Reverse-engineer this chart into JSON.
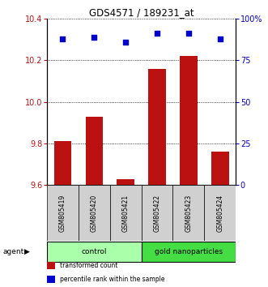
{
  "title": "GDS4571 / 189231_at",
  "samples": [
    "GSM805419",
    "GSM805420",
    "GSM805421",
    "GSM805422",
    "GSM805423",
    "GSM805424"
  ],
  "bar_values": [
    9.81,
    9.93,
    9.63,
    10.16,
    10.22,
    9.76
  ],
  "dot_values": [
    88,
    89,
    86,
    91,
    91,
    88
  ],
  "ylim_left": [
    9.6,
    10.4
  ],
  "ylim_right": [
    0,
    100
  ],
  "yticks_left": [
    9.6,
    9.8,
    10.0,
    10.2,
    10.4
  ],
  "yticks_right": [
    0,
    25,
    50,
    75,
    100
  ],
  "ytick_labels_right": [
    "0",
    "25",
    "50",
    "75",
    "100%"
  ],
  "bar_color": "#bb1111",
  "dot_color": "#0000cc",
  "bar_bottom": 9.6,
  "groups": [
    {
      "label": "control",
      "indices": [
        0,
        1,
        2
      ],
      "color": "#aaffaa"
    },
    {
      "label": "gold nanoparticles",
      "indices": [
        3,
        4,
        5
      ],
      "color": "#44dd44"
    }
  ],
  "legend_items": [
    {
      "color": "#bb1111",
      "label": "transformed count"
    },
    {
      "color": "#0000cc",
      "label": "percentile rank within the sample"
    }
  ]
}
